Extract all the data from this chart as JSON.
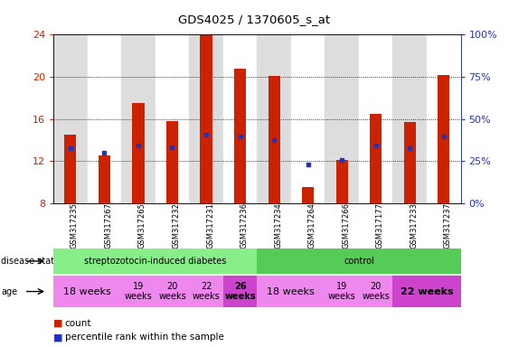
{
  "title": "GDS4025 / 1370605_s_at",
  "samples": [
    "GSM317235",
    "GSM317267",
    "GSM317265",
    "GSM317232",
    "GSM317231",
    "GSM317236",
    "GSM317234",
    "GSM317264",
    "GSM317266",
    "GSM317177",
    "GSM317233",
    "GSM317237"
  ],
  "bar_heights": [
    14.5,
    12.5,
    17.5,
    15.8,
    24.0,
    20.8,
    20.1,
    9.5,
    12.1,
    16.5,
    15.7,
    20.2
  ],
  "bar_base": 8.0,
  "blue_dot_y": [
    13.2,
    12.8,
    13.5,
    13.3,
    14.5,
    14.3,
    14.0,
    11.7,
    12.1,
    13.5,
    13.2,
    14.3
  ],
  "ylim_left": [
    8,
    24
  ],
  "ylim_right": [
    0,
    100
  ],
  "yticks_left": [
    8,
    12,
    16,
    20,
    24
  ],
  "yticks_right": [
    0,
    25,
    50,
    75,
    100
  ],
  "bar_color": "#cc2200",
  "dot_color": "#2233bb",
  "disease_state_groups": [
    {
      "label": "streptozotocin-induced diabetes",
      "start": 0,
      "end": 6,
      "color": "#88ee88"
    },
    {
      "label": "control",
      "start": 6,
      "end": 12,
      "color": "#55cc55"
    }
  ],
  "age_groups": [
    {
      "label": "18 weeks",
      "start": 0,
      "end": 2,
      "color": "#ee88ee",
      "fontsize": 8,
      "bold": false
    },
    {
      "label": "19\nweeks",
      "start": 2,
      "end": 3,
      "color": "#ee88ee",
      "fontsize": 7,
      "bold": false
    },
    {
      "label": "20\nweeks",
      "start": 3,
      "end": 4,
      "color": "#ee88ee",
      "fontsize": 7,
      "bold": false
    },
    {
      "label": "22\nweeks",
      "start": 4,
      "end": 5,
      "color": "#ee88ee",
      "fontsize": 7,
      "bold": false
    },
    {
      "label": "26\nweeks",
      "start": 5,
      "end": 6,
      "color": "#cc44cc",
      "fontsize": 7,
      "bold": true
    },
    {
      "label": "18 weeks",
      "start": 6,
      "end": 8,
      "color": "#ee88ee",
      "fontsize": 8,
      "bold": false
    },
    {
      "label": "19\nweeks",
      "start": 8,
      "end": 9,
      "color": "#ee88ee",
      "fontsize": 7,
      "bold": false
    },
    {
      "label": "20\nweeks",
      "start": 9,
      "end": 10,
      "color": "#ee88ee",
      "fontsize": 7,
      "bold": false
    },
    {
      "label": "22 weeks",
      "start": 10,
      "end": 12,
      "color": "#cc44cc",
      "fontsize": 8,
      "bold": true
    }
  ],
  "bg_color": "#ffffff",
  "tick_color_left": "#cc2200",
  "tick_color_right": "#2233bb",
  "bar_width": 0.35,
  "col_bg_even": "#dddddd",
  "col_bg_odd": "#ffffff"
}
